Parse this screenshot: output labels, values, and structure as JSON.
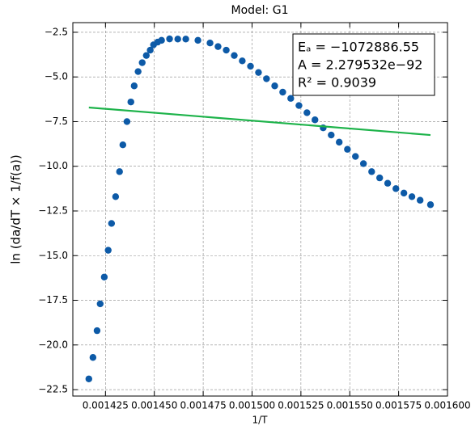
{
  "chart_data": {
    "type": "scatter",
    "title": "Model: G1",
    "xlabel": "1/T",
    "ylabel": "ln (da/dT × 1/f(a))",
    "annotation_lines": [
      "Eₐ = −1072886.55",
      "A = 2.279532e−92",
      "R² = 0.9039"
    ],
    "series": [
      {
        "name": "data",
        "type": "scatter",
        "color": "#0d5aa7",
        "x": [
          0.0014165,
          0.0014186,
          0.0014207,
          0.0014223,
          0.0014244,
          0.0014264,
          0.0014281,
          0.0014302,
          0.0014322,
          0.0014339,
          0.001436,
          0.001438,
          0.0014397,
          0.0014417,
          0.0014438,
          0.0014459,
          0.0014479,
          0.0014496,
          0.0014517,
          0.0014537,
          0.0014578,
          0.001462,
          0.0014661,
          0.0014723,
          0.0014785,
          0.0014826,
          0.0014868,
          0.0014909,
          0.001495,
          0.0014992,
          0.0015033,
          0.0015074,
          0.0015116,
          0.0015157,
          0.0015198,
          0.001524,
          0.0015281,
          0.0015322,
          0.0015364,
          0.0015405,
          0.0015446,
          0.0015488,
          0.0015529,
          0.001557,
          0.0015612,
          0.0015653,
          0.0015694,
          0.0015736,
          0.0015777,
          0.0015818,
          0.001586,
          0.0015913
        ],
        "values": [
          -21.9,
          -20.7,
          -19.2,
          -17.7,
          -16.2,
          -14.7,
          -13.2,
          -11.7,
          -10.3,
          -8.8,
          -7.5,
          -6.4,
          -5.5,
          -4.7,
          -4.2,
          -3.8,
          -3.5,
          -3.2,
          -3.05,
          -2.95,
          -2.87,
          -2.88,
          -2.88,
          -2.95,
          -3.1,
          -3.3,
          -3.5,
          -3.8,
          -4.1,
          -4.4,
          -4.75,
          -5.1,
          -5.5,
          -5.85,
          -6.2,
          -6.6,
          -7.0,
          -7.4,
          -7.85,
          -8.25,
          -8.65,
          -9.05,
          -9.45,
          -9.85,
          -10.3,
          -10.65,
          -10.95,
          -11.25,
          -11.5,
          -11.7,
          -11.9,
          -12.15
        ]
      },
      {
        "name": "fit",
        "type": "line",
        "color": "#1db34a",
        "x": [
          0.0014165,
          0.0015913
        ],
        "values": [
          -6.71,
          -8.25
        ]
      }
    ],
    "xlim": [
      0.0014083,
      0.0016
    ],
    "ylim": [
      -22.86,
      -1.96
    ],
    "xticks": [
      0.001425,
      {
        "value": 0.00145,
        "label": "0.001450"
      },
      0.001475,
      {
        "value": 0.0015,
        "label": "0.001500"
      },
      0.001525,
      {
        "value": 0.00155,
        "label": "0.001550"
      },
      0.001575,
      {
        "value": 0.0016,
        "label": "0.001600"
      }
    ],
    "yticks": [
      {
        "value": -2.5,
        "label": "−2.5"
      },
      {
        "value": -5.0,
        "label": "−5.0"
      },
      {
        "value": -7.5,
        "label": "−7.5"
      },
      {
        "value": -10.0,
        "label": "−10.0"
      },
      {
        "value": -12.5,
        "label": "−12.5"
      },
      {
        "value": -15.0,
        "label": "−15.0"
      },
      {
        "value": -17.5,
        "label": "−17.5"
      },
      {
        "value": -20.0,
        "label": "−20.0"
      },
      {
        "value": -22.5,
        "label": "−22.5"
      }
    ],
    "grid": true
  }
}
